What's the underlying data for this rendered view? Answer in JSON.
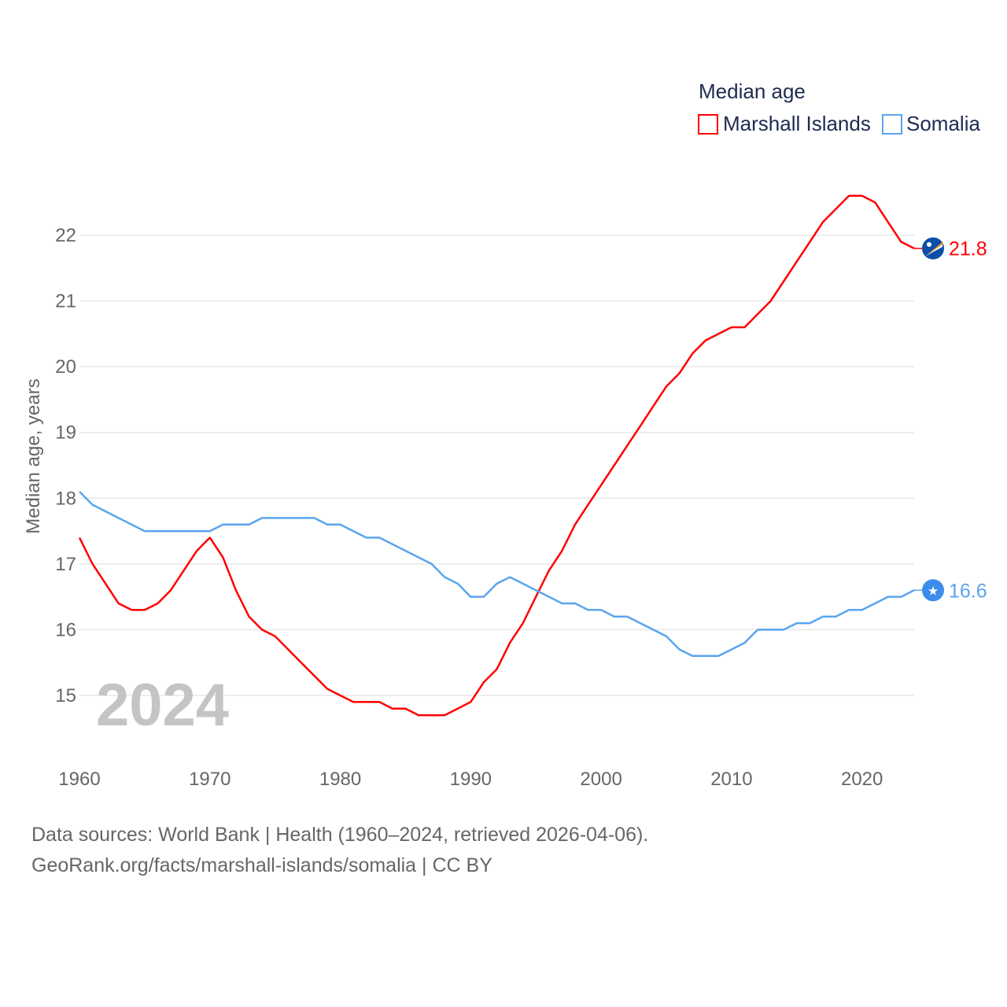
{
  "chart_data": {
    "type": "line",
    "legend_title": "Median age",
    "legend_placement": "top-right",
    "ylabel": "Median age, years",
    "xlabel": "",
    "xlim": [
      1960,
      2024
    ],
    "ylim": [
      14.3,
      23.0
    ],
    "x_ticks": [
      1960,
      1970,
      1980,
      1990,
      2000,
      2010,
      2020
    ],
    "y_ticks": [
      15,
      16,
      17,
      18,
      19,
      20,
      21,
      22
    ],
    "grid": true,
    "year_watermark": "2024",
    "x": [
      1960,
      1961,
      1962,
      1963,
      1964,
      1965,
      1966,
      1967,
      1968,
      1969,
      1970,
      1971,
      1972,
      1973,
      1974,
      1975,
      1976,
      1977,
      1978,
      1979,
      1980,
      1981,
      1982,
      1983,
      1984,
      1985,
      1986,
      1987,
      1988,
      1989,
      1990,
      1991,
      1992,
      1993,
      1994,
      1995,
      1996,
      1997,
      1998,
      1999,
      2000,
      2001,
      2002,
      2003,
      2004,
      2005,
      2006,
      2007,
      2008,
      2009,
      2010,
      2011,
      2012,
      2013,
      2014,
      2015,
      2016,
      2017,
      2018,
      2019,
      2020,
      2021,
      2022,
      2023,
      2024
    ],
    "series": [
      {
        "name": "Marshall Islands",
        "color": "#ff0000",
        "end_label": "21.8",
        "values": [
          17.4,
          17.0,
          16.7,
          16.4,
          16.3,
          16.3,
          16.4,
          16.6,
          16.9,
          17.2,
          17.4,
          17.1,
          16.6,
          16.2,
          16.0,
          15.9,
          15.7,
          15.5,
          15.3,
          15.1,
          15.0,
          14.9,
          14.9,
          14.9,
          14.8,
          14.8,
          14.7,
          14.7,
          14.7,
          14.8,
          14.9,
          15.2,
          15.4,
          15.8,
          16.1,
          16.5,
          16.9,
          17.2,
          17.6,
          17.9,
          18.2,
          18.5,
          18.8,
          19.1,
          19.4,
          19.7,
          19.9,
          20.2,
          20.4,
          20.5,
          20.6,
          20.6,
          20.8,
          21.0,
          21.3,
          21.6,
          21.9,
          22.2,
          22.4,
          22.6,
          22.6,
          22.5,
          22.2,
          21.9,
          21.8
        ]
      },
      {
        "name": "Somalia",
        "color": "#5ba4ee",
        "end_label": "16.6",
        "values": [
          18.1,
          17.9,
          17.8,
          17.7,
          17.6,
          17.5,
          17.5,
          17.5,
          17.5,
          17.5,
          17.5,
          17.6,
          17.6,
          17.6,
          17.7,
          17.7,
          17.7,
          17.7,
          17.7,
          17.6,
          17.6,
          17.5,
          17.4,
          17.4,
          17.3,
          17.2,
          17.1,
          17.0,
          16.8,
          16.7,
          16.5,
          16.5,
          16.7,
          16.8,
          16.7,
          16.6,
          16.5,
          16.4,
          16.4,
          16.3,
          16.3,
          16.2,
          16.2,
          16.1,
          16.0,
          15.9,
          15.7,
          15.6,
          15.6,
          15.6,
          15.7,
          15.8,
          16.0,
          16.0,
          16.0,
          16.1,
          16.1,
          16.2,
          16.2,
          16.3,
          16.3,
          16.4,
          16.5,
          16.5,
          16.6
        ]
      }
    ]
  },
  "footer": {
    "line1": "Data sources: World Bank | Health (1960–2024, retrieved 2026-04-06).",
    "line2": "GeoRank.org/facts/marshall-islands/somalia | CC BY"
  }
}
